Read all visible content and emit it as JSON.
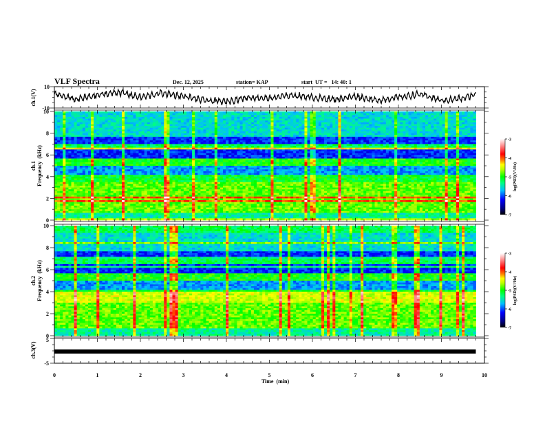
{
  "header": {
    "title": "VLF Spectra",
    "date": "Dec. 12, 2025",
    "station": "station= KAP",
    "start_ut": "start  UT =   14: 40: 1"
  },
  "chart_data": [
    {
      "type": "line",
      "name": "ch1-waveform",
      "ylabel": "ch.1(V)",
      "ylim": [
        -10,
        10
      ],
      "yticks": [
        "10",
        "-10"
      ],
      "xlim": [
        0,
        10
      ],
      "data_end_min": 9.8,
      "description_values": "noisy waveform roughly between -8 and 8 V",
      "series": [
        {
          "name": "ch.1",
          "x": [
            0,
            0.5,
            1,
            1.5,
            2,
            2.5,
            3,
            3.5,
            4,
            4.5,
            5,
            5.5,
            6,
            6.5,
            7,
            7.5,
            8,
            8.5,
            9,
            9.5,
            9.8
          ],
          "y": [
            3,
            -2,
            2,
            5,
            0,
            4,
            1,
            -3,
            -4,
            0,
            -1,
            2,
            0,
            -2,
            1,
            -3,
            0,
            3,
            -3,
            -1,
            3
          ]
        }
      ]
    },
    {
      "type": "heatmap",
      "name": "ch1-spectrogram",
      "ylabel": "ch.1\nFrequency  (kHz)",
      "ylabel_lines": [
        "ch.1",
        "Frequency  (kHz)"
      ],
      "ylim": [
        0,
        10
      ],
      "yticks": [
        "0",
        "2",
        "4",
        "6",
        "8",
        "10"
      ],
      "xlim": [
        0,
        10
      ],
      "colorbar": {
        "label": "log(PSD)(V²/Hz)",
        "range": [
          -7,
          -3
        ],
        "ticks": [
          "-3",
          "-4",
          "-5",
          "-6",
          "-7"
        ]
      }
    },
    {
      "type": "heatmap",
      "name": "ch2-spectrogram",
      "ylabel_lines": [
        "ch.2",
        "Frequency  (kHz)"
      ],
      "ylim": [
        0,
        10
      ],
      "yticks": [
        "0",
        "2",
        "4",
        "6",
        "8",
        "10"
      ],
      "xlim": [
        0,
        10
      ],
      "colorbar": {
        "label": "log(PSD)(V²/Hz)",
        "range": [
          -7,
          -3
        ],
        "ticks": [
          "-3",
          "-4",
          "-5",
          "-6",
          "-7"
        ]
      }
    },
    {
      "type": "line",
      "name": "ch3-waveform",
      "ylabel": "ch.3(V)",
      "ylim": [
        -5,
        5
      ],
      "yticks": [
        "5",
        "-5"
      ],
      "xlim": [
        0,
        10
      ],
      "series": [
        {
          "name": "ch.3",
          "x": [
            0,
            9.8
          ],
          "y": [
            0,
            0
          ]
        }
      ]
    }
  ],
  "xaxis": {
    "label": "Time  (min)",
    "ticks": [
      "0",
      "1",
      "2",
      "3",
      "4",
      "5",
      "6",
      "7",
      "8",
      "9",
      "10"
    ]
  },
  "colorbar_label": "log(PSD)(V²/Hz)"
}
